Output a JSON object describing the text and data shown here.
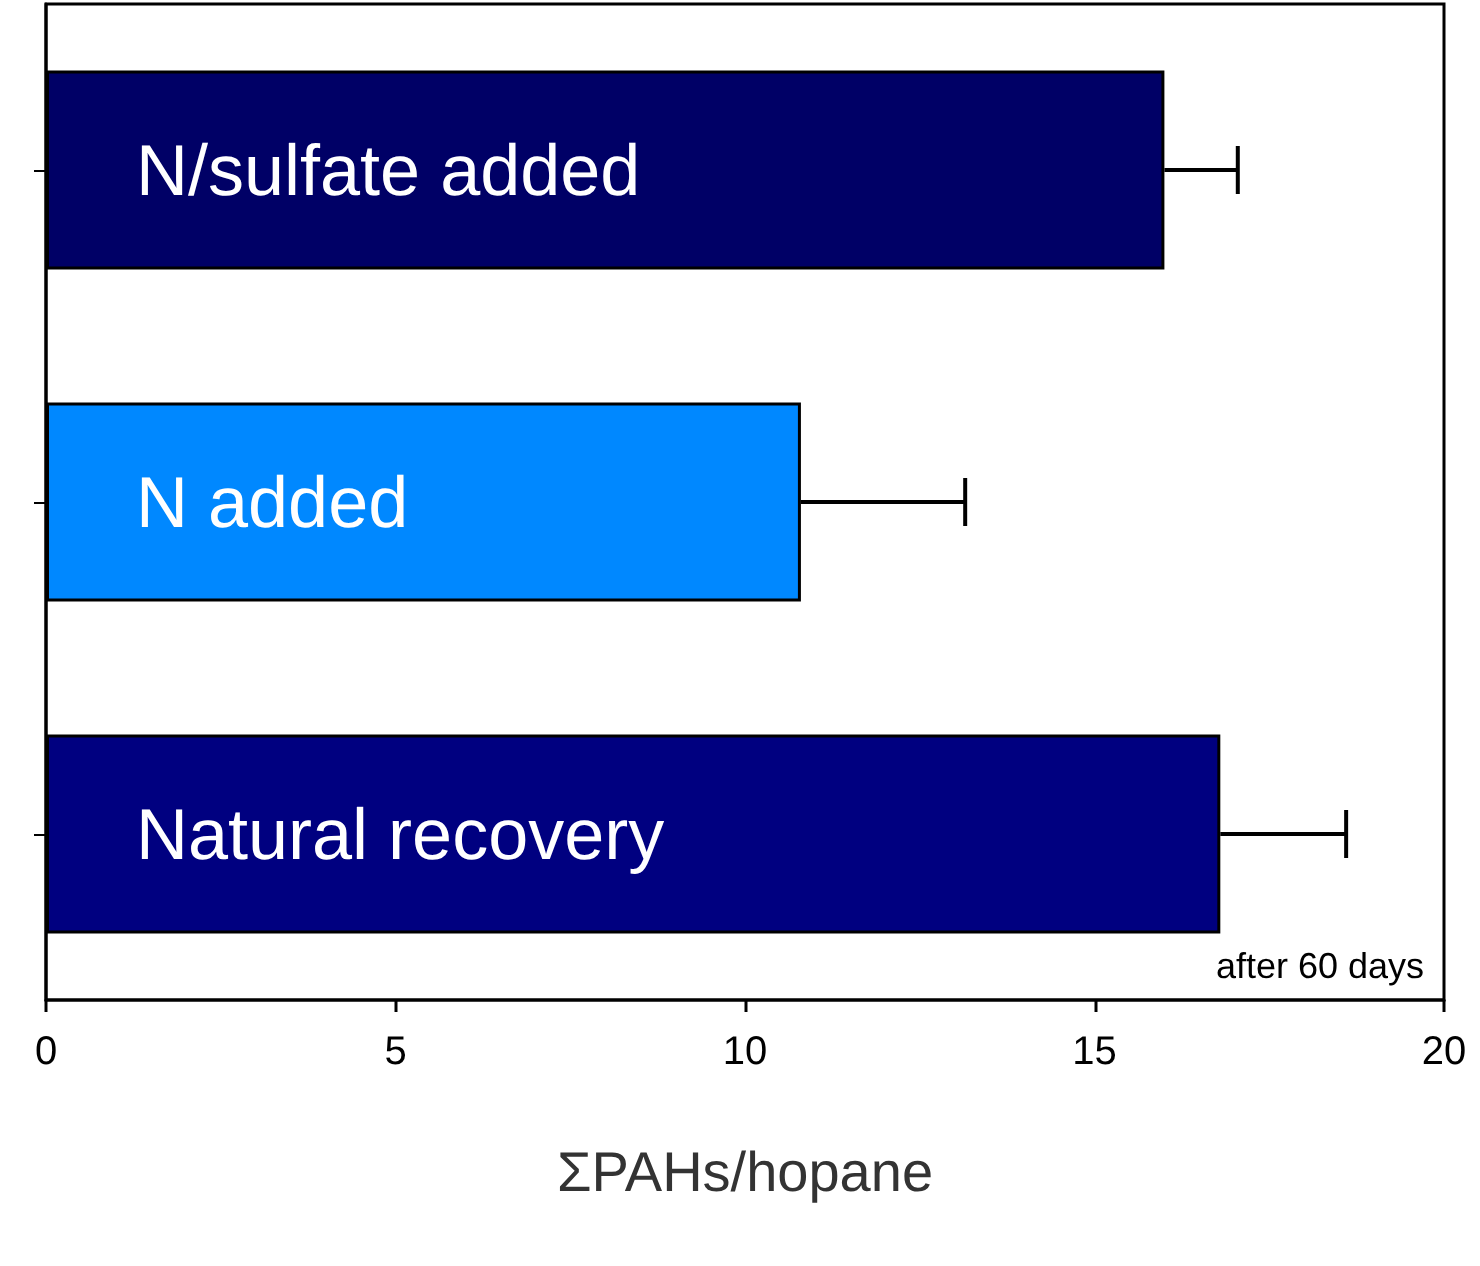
{
  "chart_data": {
    "type": "bar",
    "orientation": "horizontal",
    "xlabel": "ΣPAHs/hopane",
    "categories": [
      "N/sulfate added",
      "N added",
      "Natural recovery"
    ],
    "values": [
      16.0,
      10.8,
      16.8
    ],
    "colors": [
      "#000066",
      "#0088ff",
      "#000080"
    ],
    "errors": [
      [
        16.0,
        17.05
      ],
      [
        10.8,
        13.15
      ],
      [
        16.8,
        18.6
      ]
    ],
    "xlim": [
      0,
      20
    ],
    "xticks": [
      0,
      5,
      10,
      15,
      20
    ],
    "grid": false,
    "annotations": [
      "after 60 days"
    ]
  }
}
